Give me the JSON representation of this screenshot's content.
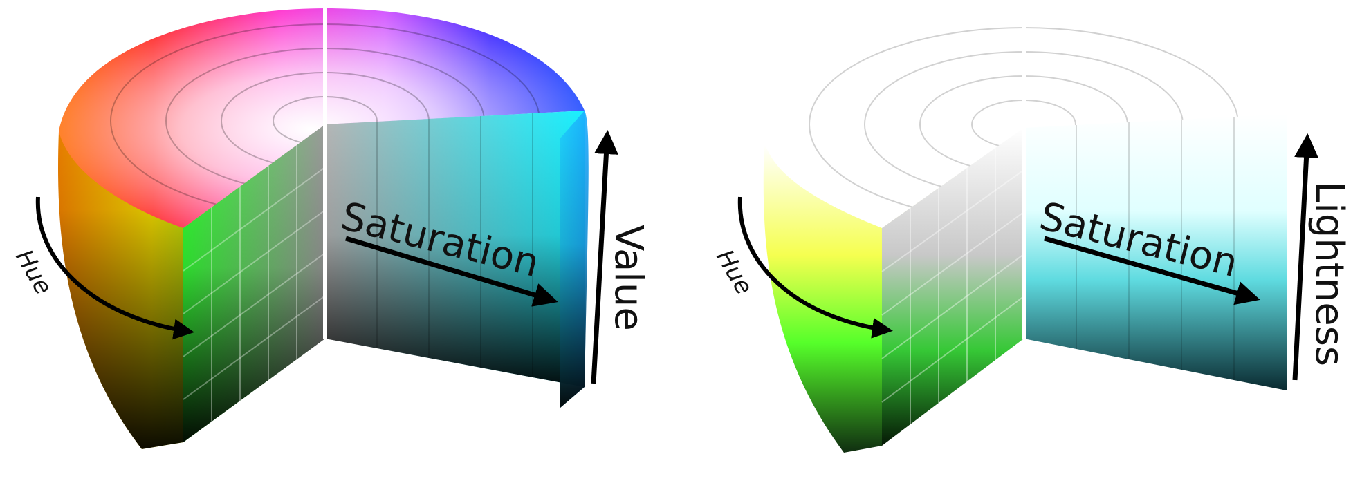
{
  "diagrams": [
    {
      "id": "hsv",
      "labels": {
        "hue": "Hue",
        "saturation": "Saturation",
        "vertical": "Value"
      },
      "colors": {
        "hue_wheel": [
          "#ff0000",
          "#ffff00",
          "#00ff00",
          "#00ffff",
          "#0000ff",
          "#ff00ff"
        ],
        "bottom": "#000000"
      }
    },
    {
      "id": "hsl",
      "labels": {
        "hue": "Hue",
        "saturation": "Saturation",
        "vertical": "Lightness"
      },
      "colors": {
        "top": "#ffffff",
        "mid_hue": [
          "#ffff00",
          "#00ff00",
          "#00ffff"
        ],
        "bottom": "#000000"
      }
    }
  ],
  "colors": {
    "arrow": "#000000",
    "background": "#ffffff"
  }
}
